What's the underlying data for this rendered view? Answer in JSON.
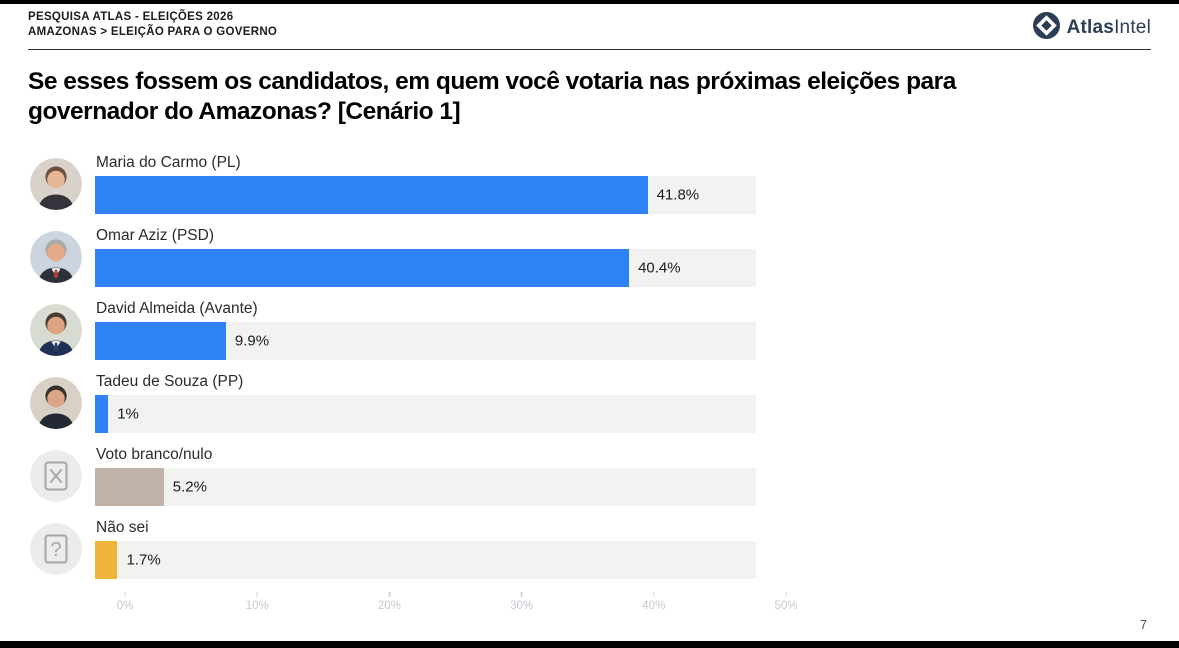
{
  "header": {
    "kicker_line1": "PESQUISA ATLAS - ELEIÇÕES 2026",
    "kicker_line2": "AMAZONAS > ELEIÇÃO PARA O GOVERNO",
    "brand": {
      "atlas": "Atlas",
      "intel": "Intel",
      "color": "#2C3D55"
    }
  },
  "title": "Se esses fossem os candidatos, em quem você votaria nas próximas eleições para governador do Amazonas? [Cenário 1]",
  "page_number": "7",
  "chart_data": {
    "type": "bar",
    "orientation": "horizontal",
    "title": "Se esses fossem os candidatos, em quem você votaria nas próximas eleições para governador do Amazonas? [Cenário 1]",
    "categories": [
      "Maria do Carmo (PL)",
      "Omar Aziz (PSD)",
      "David Almeida (Avante)",
      "Tadeu de Souza (PP)",
      "Voto branco/nulo",
      "Não sei"
    ],
    "values": [
      41.8,
      40.4,
      9.9,
      1,
      5.2,
      1.7
    ],
    "value_labels": [
      "41.8%",
      "40.4%",
      "9.9%",
      "1%",
      "5.2%",
      "1.7%"
    ],
    "bar_colors": [
      "#2E82F6",
      "#2E82F6",
      "#2E82F6",
      "#2E82F6",
      "#C0B2A7",
      "#F1B43D"
    ],
    "track_color": "#F2F2F1",
    "xlim": [
      0,
      50
    ],
    "x_ticks": [
      "0%",
      "10%",
      "20%",
      "30%",
      "40%",
      "50%"
    ],
    "grid": "off",
    "legend": "none",
    "avatars": [
      {
        "kind": "photo",
        "person": "maria-do-carmo",
        "bg": "#d9d2ca",
        "hair": "#6e4f3e",
        "skin": "#e7b697",
        "torso": "#35343c",
        "suit": false
      },
      {
        "kind": "photo",
        "person": "omar-aziz",
        "bg": "#ccd5df",
        "hair": "#a8a8a6",
        "skin": "#e3ab89",
        "torso": "#2c3038",
        "suit": true,
        "tie": "#b23b35"
      },
      {
        "kind": "photo",
        "person": "david-almeida",
        "bg": "#d7dbd2",
        "hair": "#4b3d33",
        "skin": "#dca480",
        "torso": "#1f3054",
        "suit": true,
        "tie": "#27406e"
      },
      {
        "kind": "photo",
        "person": "tadeu-de-souza",
        "bg": "#d9d1c5",
        "hair": "#37302a",
        "skin": "#dba687",
        "torso": "#232834",
        "suit": false
      },
      {
        "kind": "icon",
        "person": "blank-null-vote",
        "glyph": "x"
      },
      {
        "kind": "icon",
        "person": "dont-know",
        "glyph": "?"
      }
    ]
  }
}
